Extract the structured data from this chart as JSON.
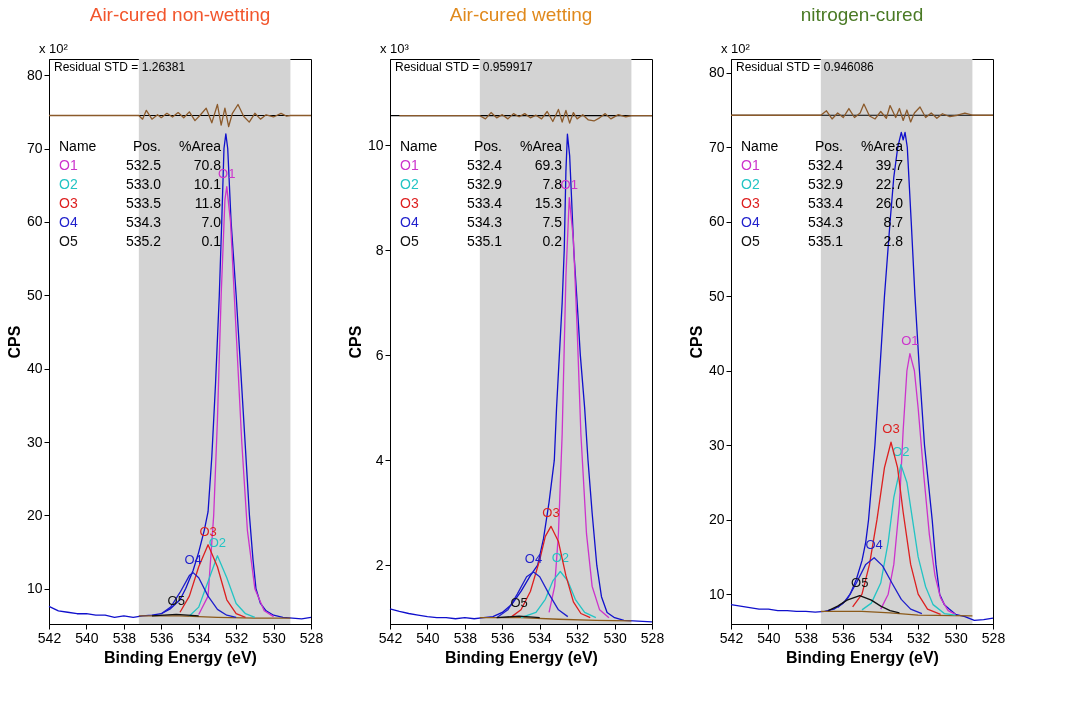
{
  "chart_data": [
    {
      "type": "line",
      "title": "Air-cured non-wetting",
      "xlabel": "Binding Energy (eV)",
      "ylabel": "CPS",
      "xlim": [
        542,
        528
      ],
      "xticks": [
        542,
        540,
        538,
        536,
        534,
        532,
        530,
        528
      ],
      "ylim": [
        5.2,
        82.2
      ],
      "yticks": [
        10,
        20,
        30,
        40,
        50,
        60,
        70,
        80
      ],
      "grid": false,
      "bands": [
        {
          "axis": "x",
          "from": 537.2,
          "to": 529.1,
          "color": "#d3d3d3"
        }
      ],
      "ref_lines": [
        {
          "axis": "y",
          "value": 74.5,
          "color": "#000000"
        }
      ],
      "series": [
        {
          "name": "O1",
          "color": "#cc33cc",
          "x": [
            534,
            533.5,
            533.2,
            533,
            532.8,
            532.6,
            532.5,
            532.3,
            532,
            531.7,
            531.4,
            531,
            530.5,
            530
          ],
          "values": [
            6.5,
            9,
            20,
            33,
            50,
            63,
            64.8,
            60,
            45,
            30,
            18,
            10,
            7,
            6.2
          ]
        },
        {
          "name": "O2",
          "color": "#22c4c4",
          "x": [
            534.5,
            534,
            533.5,
            533,
            532.5,
            532,
            531.5,
            531
          ],
          "values": [
            6.3,
            7.5,
            11,
            14.5,
            11.5,
            8,
            6.6,
            6.1
          ]
        },
        {
          "name": "O3",
          "color": "#dd1f1f",
          "x": [
            535,
            534.5,
            534,
            533.5,
            533,
            532.5,
            532,
            531.5
          ],
          "values": [
            6.8,
            9,
            13,
            16,
            13,
            8.5,
            6.6,
            6.1
          ]
        },
        {
          "name": "O4",
          "color": "#1f1fcc",
          "x": [
            536,
            535.5,
            535,
            534.5,
            534.3,
            534,
            533.5,
            533,
            532.5,
            532
          ],
          "values": [
            6.6,
            7.5,
            9.5,
            11.8,
            12.2,
            11.5,
            9,
            7.2,
            6.4,
            6.1
          ]
        },
        {
          "name": "O5",
          "color": "#111111",
          "x": [
            536.5,
            535.2,
            534
          ],
          "values": [
            6.3,
            6.5,
            6.3
          ]
        },
        {
          "color": "#1010cc",
          "x": [
            542,
            541.5,
            541,
            540.5,
            540,
            539.5,
            539,
            538.5,
            538,
            537.5,
            537,
            536.5,
            536,
            535.5,
            535,
            534.7,
            534.3,
            534,
            533.7,
            533.5,
            533.3,
            533.1,
            532.9,
            532.77,
            532.65,
            532.55,
            532.45,
            532.27,
            532,
            531.76,
            531.5,
            531.29,
            531.1,
            530.94,
            530.7,
            530.4,
            530,
            529.5,
            529,
            528.5,
            528
          ],
          "values": [
            7.6,
            7.0,
            6.8,
            6.6,
            6.6,
            6.4,
            6.4,
            6.1,
            6.3,
            6.1,
            6.3,
            6.4,
            6.6,
            7.3,
            8.5,
            10,
            12.5,
            15,
            18,
            20.5,
            28,
            38,
            50,
            60,
            70,
            72,
            70,
            60,
            50,
            40,
            29,
            20,
            14,
            10,
            8.0,
            7.0,
            6.4,
            6.1,
            6.0,
            5.9,
            6.1
          ]
        },
        {
          "color": "#8b5a1a",
          "x": [
            537.2,
            535,
            533,
            531,
            529.1
          ],
          "values": [
            6.3,
            6.3,
            6.1,
            6.0,
            6.0
          ]
        },
        {
          "color": "#8b5a2b",
          "x": [
            542,
            537.2,
            537,
            536.8,
            536.5,
            536.2,
            536,
            535.7,
            535.4,
            535.1,
            534.8,
            534.5,
            534.2,
            533.9,
            533.6,
            533.3,
            533,
            532.8,
            532.6,
            532.4,
            532.2,
            531.9,
            531.6,
            531.3,
            531,
            530.7,
            530.4,
            530,
            529.6,
            529.3,
            529.1,
            528
          ],
          "values": [
            74.5,
            74.5,
            74.0,
            75.2,
            74.0,
            74.6,
            74.2,
            74.8,
            74.3,
            74.9,
            74.2,
            75.0,
            73.8,
            74.6,
            75.5,
            73.5,
            76.0,
            73.2,
            75.5,
            73.0,
            74.8,
            76.0,
            74.4,
            73.6,
            74.8,
            74.0,
            74.6,
            74.3,
            74.8,
            74.4,
            74.5,
            74.5
          ]
        }
      ],
      "annotations": [
        "x 10²",
        "Residual STD = 1.26381",
        "Name Pos. %Area",
        "O1 532.5 70.8",
        "O2 533.0 10.1",
        "O3 533.5 11.8",
        "O4 534.3 7.0",
        "O5 535.2 0.1"
      ]
    },
    {
      "type": "line",
      "title": "Air-cured wetting",
      "xlabel": "Binding Energy (eV)",
      "ylabel": "CPS",
      "xlim": [
        542,
        528
      ],
      "xticks": [
        542,
        540,
        538,
        536,
        534,
        532,
        530,
        528
      ],
      "ylim": [
        0.88,
        11.64
      ],
      "yticks": [
        2,
        4,
        6,
        8,
        10
      ],
      "grid": false,
      "bands": [
        {
          "axis": "x",
          "from": 537.2,
          "to": 529.1,
          "color": "#d3d3d3"
        }
      ],
      "ref_lines": [
        {
          "axis": "y",
          "value": 10.56,
          "color": "#000000"
        }
      ],
      "series": [
        {
          "name": "O1",
          "color": "#cc33cc",
          "x": [
            533.5,
            533.2,
            533,
            532.8,
            532.6,
            532.42,
            532.2,
            532,
            531.8,
            531.5,
            531.2,
            530.8,
            530.3
          ],
          "values": [
            1.1,
            1.6,
            2.6,
            4.5,
            7.5,
            9.0,
            8.2,
            6.5,
            4.5,
            2.6,
            1.6,
            1.15,
            1.0
          ]
        },
        {
          "name": "O2",
          "color": "#22c4c4",
          "x": [
            535,
            534.2,
            533.7,
            533.3,
            532.9,
            532.5,
            532.1,
            531.6,
            531
          ],
          "values": [
            1.0,
            1.1,
            1.35,
            1.7,
            1.88,
            1.7,
            1.35,
            1.1,
            1.0
          ]
        },
        {
          "name": "O3",
          "color": "#dd1f1f",
          "x": [
            535.5,
            535,
            534.5,
            534,
            533.7,
            533.4,
            533,
            532.6,
            532.2,
            531.8,
            531.3
          ],
          "values": [
            1.02,
            1.15,
            1.5,
            2.1,
            2.55,
            2.74,
            2.45,
            1.8,
            1.3,
            1.08,
            1.0
          ]
        },
        {
          "name": "O4",
          "color": "#1f1fcc",
          "x": [
            536.3,
            535.7,
            535.2,
            534.7,
            534.33,
            534,
            533.5,
            533,
            532.5
          ],
          "values": [
            1.0,
            1.15,
            1.45,
            1.78,
            1.87,
            1.78,
            1.45,
            1.15,
            1.02
          ]
        },
        {
          "name": "O5",
          "color": "#111111",
          "x": [
            536.3,
            535.1,
            534
          ],
          "values": [
            1.0,
            1.03,
            1.0
          ]
        },
        {
          "color": "#1010cc",
          "x": [
            542,
            541.5,
            541,
            540.5,
            540,
            539.5,
            539,
            538.5,
            538,
            537.5,
            537,
            536.5,
            536,
            535.5,
            535,
            534.5,
            534.11,
            533.8,
            533.5,
            533.22,
            533.1,
            532.95,
            532.8,
            532.69,
            532.6,
            532.52,
            532.4,
            532.3,
            532.18,
            532,
            531.83,
            531.6,
            531.42,
            531.2,
            530.95,
            530.7,
            530.4,
            530,
            529.5,
            529,
            528.5,
            528
          ],
          "values": [
            1.17,
            1.12,
            1.08,
            1.05,
            1.02,
            1.0,
            1.0,
            0.98,
            1.0,
            0.98,
            1.0,
            1.02,
            1.1,
            1.25,
            1.5,
            1.8,
            2.0,
            2.5,
            3.2,
            4.0,
            5.0,
            6.0,
            7.0,
            8.0,
            9.5,
            10.21,
            9.8,
            9.0,
            8.0,
            7.0,
            6.0,
            5.0,
            4.0,
            3.0,
            2.0,
            1.4,
            1.1,
            1.0,
            0.95,
            0.94,
            0.93,
            0.92
          ]
        },
        {
          "color": "#8b5a1a",
          "x": [
            537.2,
            535,
            533,
            531,
            529.1
          ],
          "values": [
            1.0,
            1.0,
            0.97,
            0.95,
            0.94
          ]
        },
        {
          "color": "#8b5a2b",
          "x": [
            541.5,
            537.2,
            536.9,
            536.6,
            536.3,
            536,
            535.7,
            535.4,
            535.1,
            534.8,
            534.5,
            534.2,
            533.9,
            533.6,
            533.3,
            533,
            532.8,
            532.6,
            532.4,
            532.2,
            532,
            531.7,
            531.4,
            531.1,
            530.8,
            530.5,
            530.2,
            529.8,
            529.4,
            529.1,
            528
          ],
          "values": [
            10.56,
            10.56,
            10.5,
            10.62,
            10.52,
            10.58,
            10.5,
            10.6,
            10.54,
            10.6,
            10.52,
            10.57,
            10.5,
            10.64,
            10.45,
            10.68,
            10.44,
            10.66,
            10.42,
            10.62,
            10.5,
            10.58,
            10.48,
            10.46,
            10.52,
            10.6,
            10.5,
            10.58,
            10.54,
            10.56,
            10.56
          ]
        }
      ],
      "annotations": [
        "x 10³",
        "Residual STD = 0.959917",
        "Name Pos. %Area",
        "O1 532.4 69.3",
        "O2 532.9 7.8",
        "O3 533.4 15.3",
        "O4 534.3 7.5",
        "O5 535.1 0.2"
      ]
    },
    {
      "type": "line",
      "title": "nitrogen-cured",
      "xlabel": "Binding Energy (eV)",
      "ylabel": "CPS",
      "xlim": [
        542,
        528
      ],
      "xticks": [
        542,
        540,
        538,
        536,
        534,
        532,
        530,
        528
      ],
      "ylim": [
        6.0,
        81.85
      ],
      "yticks": [
        10,
        20,
        30,
        40,
        50,
        60,
        70,
        80
      ],
      "grid": false,
      "bands": [
        {
          "axis": "x",
          "from": 537.2,
          "to": 529.1,
          "color": "#d3d3d3"
        }
      ],
      "ref_lines": [
        {
          "axis": "y",
          "value": 74.3,
          "color": "#000000"
        }
      ],
      "series": [
        {
          "name": "O1",
          "color": "#cc33cc",
          "x": [
            534,
            533.6,
            533.3,
            533,
            532.8,
            532.6,
            532.44,
            532.2,
            532,
            531.7,
            531.4,
            531.1,
            530.8,
            530.4,
            530
          ],
          "values": [
            8.0,
            10,
            14,
            22,
            32,
            40,
            42.3,
            40,
            35,
            26,
            18,
            12.5,
            9.5,
            7.8,
            7.3
          ]
        },
        {
          "name": "O2",
          "color": "#22c4c4",
          "x": [
            535,
            534.5,
            534,
            533.6,
            533.3,
            532.92,
            532.6,
            532.3,
            532,
            531.6,
            531.2,
            530.6,
            530
          ],
          "values": [
            7.9,
            8.8,
            11.5,
            17,
            23,
            27.4,
            25,
            20,
            15,
            11,
            8.6,
            7.4,
            7.2
          ]
        },
        {
          "name": "O3",
          "color": "#dd1f1f",
          "x": [
            535.5,
            535,
            534.6,
            534.2,
            533.8,
            533.45,
            533.1,
            532.8,
            532.4,
            532,
            531.5,
            530.8
          ],
          "values": [
            8.3,
            10,
            14,
            20,
            27,
            30.4,
            27,
            21,
            14,
            10,
            8,
            7.3
          ]
        },
        {
          "name": "O4",
          "color": "#1f1fcc",
          "x": [
            536.3,
            535.8,
            535.3,
            534.8,
            534.35,
            533.9,
            533.4,
            532.9,
            532.4,
            531.8
          ],
          "values": [
            8.2,
            9.3,
            11.5,
            14,
            14.9,
            13.8,
            11.5,
            9.3,
            8.0,
            7.4
          ]
        },
        {
          "name": "O5",
          "color": "#111111",
          "x": [
            536.8,
            536.3,
            535.8,
            535.12,
            534.5,
            534,
            533.5,
            533
          ],
          "values": [
            7.8,
            8.4,
            9.2,
            9.8,
            9.2,
            8.4,
            7.8,
            7.5
          ]
        },
        {
          "color": "#1010cc",
          "x": [
            542,
            541.5,
            541,
            540.5,
            540,
            539.5,
            539,
            538.5,
            538,
            537.5,
            537,
            536.5,
            536,
            535.63,
            535.3,
            535,
            534.8,
            534.65,
            534.31,
            534.05,
            533.8,
            533.5,
            533.3,
            533.09,
            532.9,
            532.8,
            532.7,
            532.58,
            532.37,
            532.17,
            531.93,
            531.66,
            531.25,
            531.05,
            530.85,
            530.6,
            530.34,
            530,
            529.5,
            529,
            528.5,
            528
          ],
          "values": [
            8.6,
            8.4,
            8.2,
            8.0,
            8.0,
            7.8,
            7.8,
            7.7,
            7.7,
            7.6,
            7.7,
            8.0,
            8.8,
            10,
            12,
            14.5,
            17,
            20,
            30,
            40,
            50,
            60,
            66,
            70,
            72,
            71,
            72,
            70,
            60,
            50,
            40,
            30,
            20,
            14,
            10,
            8.6,
            8.0,
            7.3,
            7.0,
            6.5,
            6.6,
            6.8
          ]
        },
        {
          "color": "#8b5a1a",
          "x": [
            537.2,
            535,
            533.5,
            532,
            529.1
          ],
          "values": [
            7.7,
            7.7,
            7.5,
            7.2,
            7.1
          ]
        },
        {
          "color": "#8b5a2b",
          "x": [
            542,
            537.2,
            536.9,
            536.6,
            536.3,
            536,
            535.7,
            535.4,
            535.1,
            534.9,
            534.6,
            534.3,
            534,
            533.7,
            533.5,
            533.2,
            533,
            532.8,
            532.6,
            532.4,
            532.2,
            531.9,
            531.6,
            531.3,
            531,
            530.7,
            530.3,
            529.9,
            529.5,
            529.1,
            528
          ],
          "values": [
            74.3,
            74.3,
            74.9,
            73.8,
            74.6,
            74.0,
            75.2,
            74.0,
            74.6,
            75.8,
            74.2,
            73.8,
            74.8,
            73.9,
            75.6,
            74.0,
            75.2,
            73.6,
            75.0,
            73.4,
            74.6,
            75.4,
            74.0,
            74.6,
            73.9,
            74.5,
            74.1,
            74.3,
            74.6,
            74.3,
            74.3
          ]
        }
      ],
      "annotations": [
        "x 10²",
        "Residual STD = 0.946086",
        "Name Pos. %Area",
        "O1 532.4 39.7",
        "O2 532.9 22.7",
        "O3 533.4 26.0",
        "O4 534.3 8.7",
        "O5 535.1 2.8"
      ]
    }
  ]
}
